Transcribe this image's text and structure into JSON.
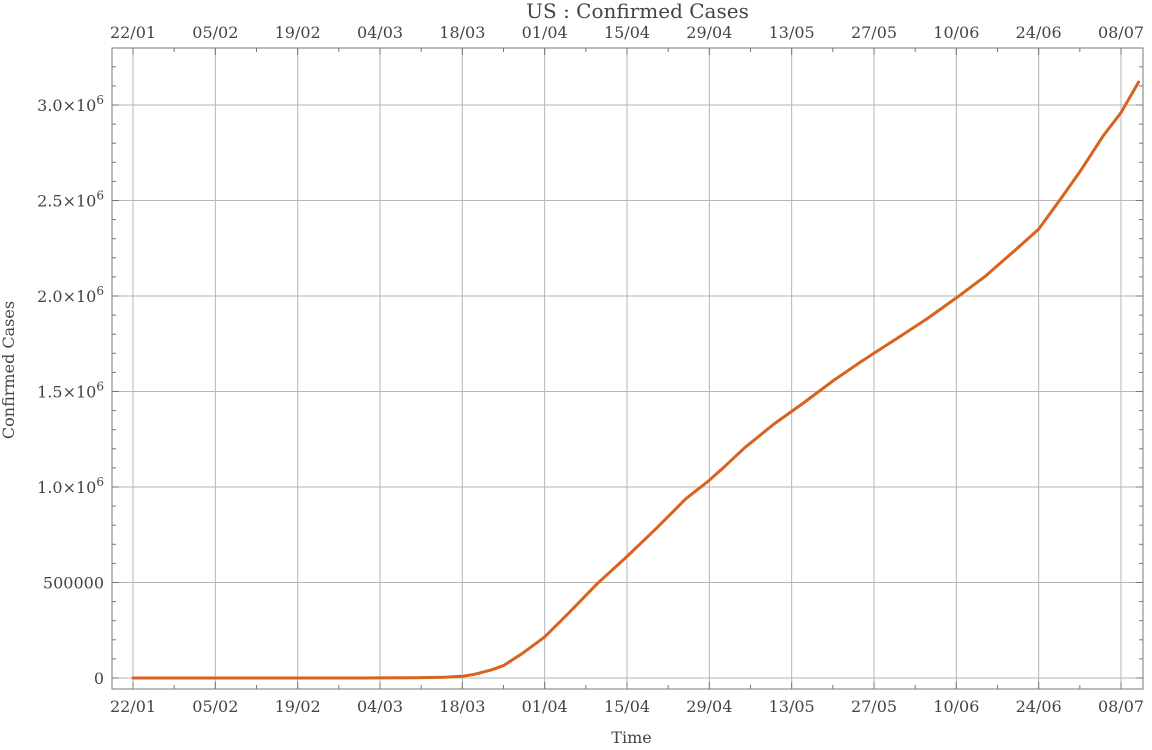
{
  "chart_data": {
    "type": "line",
    "title": "US : Confirmed Cases",
    "xlabel": "Time",
    "ylabel": "Confirmed Cases",
    "x_ticks": [
      "22/01",
      "05/02",
      "19/02",
      "04/03",
      "18/03",
      "01/04",
      "15/04",
      "29/04",
      "13/05",
      "27/05",
      "10/06",
      "24/06",
      "08/07"
    ],
    "y_ticks": [
      {
        "value": 0,
        "label": "0"
      },
      {
        "value": 500000,
        "label": "500000"
      },
      {
        "value": 1000000,
        "label": "1.0",
        "exp": "6"
      },
      {
        "value": 1500000,
        "label": "1.5",
        "exp": "6"
      },
      {
        "value": 2000000,
        "label": "2.0",
        "exp": "6"
      },
      {
        "value": 2500000,
        "label": "2.5",
        "exp": "6"
      },
      {
        "value": 3000000,
        "label": "3.0",
        "exp": "6"
      }
    ],
    "x_range": [
      "22/01",
      "11/07"
    ],
    "ylim": [
      -40000,
      3260000
    ],
    "grid": true,
    "color": "#d9621f",
    "series": [
      {
        "x": [
          "22/01",
          "01/02",
          "15/02",
          "01/03",
          "10/03",
          "15/03",
          "18/03",
          "20/03",
          "23/03",
          "25/03",
          "28/03",
          "01/04",
          "05/04",
          "10/04",
          "15/04",
          "20/04",
          "25/04",
          "29/04",
          "01/05",
          "05/05",
          "10/05",
          "15/05",
          "20/05",
          "25/05",
          "01/06",
          "05/06",
          "10/06",
          "15/06",
          "20/06",
          "24/06",
          "28/06",
          "01/07",
          "05/07",
          "08/07",
          "11/07"
        ],
        "values": [
          1,
          8,
          15,
          75,
          1000,
          3500,
          9000,
          19000,
          43000,
          65000,
          124000,
          215000,
          337000,
          496000,
          636000,
          784000,
          938000,
          1035000,
          1090000,
          1205000,
          1330000,
          1440000,
          1555000,
          1660000,
          1800000,
          1880000,
          1990000,
          2105000,
          2240000,
          2350000,
          2520000,
          2650000,
          2840000,
          2960000,
          3120000
        ]
      }
    ]
  }
}
